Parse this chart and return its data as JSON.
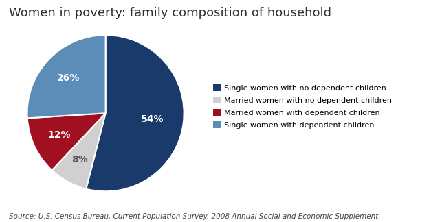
{
  "title": "Women in poverty: family composition of household",
  "title_fontsize": 13,
  "title_color": "#2e2e2e",
  "slices": [
    54,
    8,
    12,
    26
  ],
  "pct_labels": [
    "54%",
    "8%",
    "12%",
    "26%"
  ],
  "colors": [
    "#1a3a6b",
    "#d0d0d0",
    "#a01020",
    "#5b8db8"
  ],
  "legend_labels": [
    "Single women with no dependent children",
    "Married women with no dependent children",
    "Married women with dependent children",
    "Single women with dependent children"
  ],
  "source_text": "Source: U.S. Census Bureau, Current Population Survey, 2008 Annual Social and Economic Supplement.",
  "source_fontsize": 7.5,
  "bg_color": "#ffffff",
  "startangle": 90,
  "pct_fontsize": 10,
  "label_colors": [
    "white",
    "#555555",
    "white",
    "white"
  ]
}
